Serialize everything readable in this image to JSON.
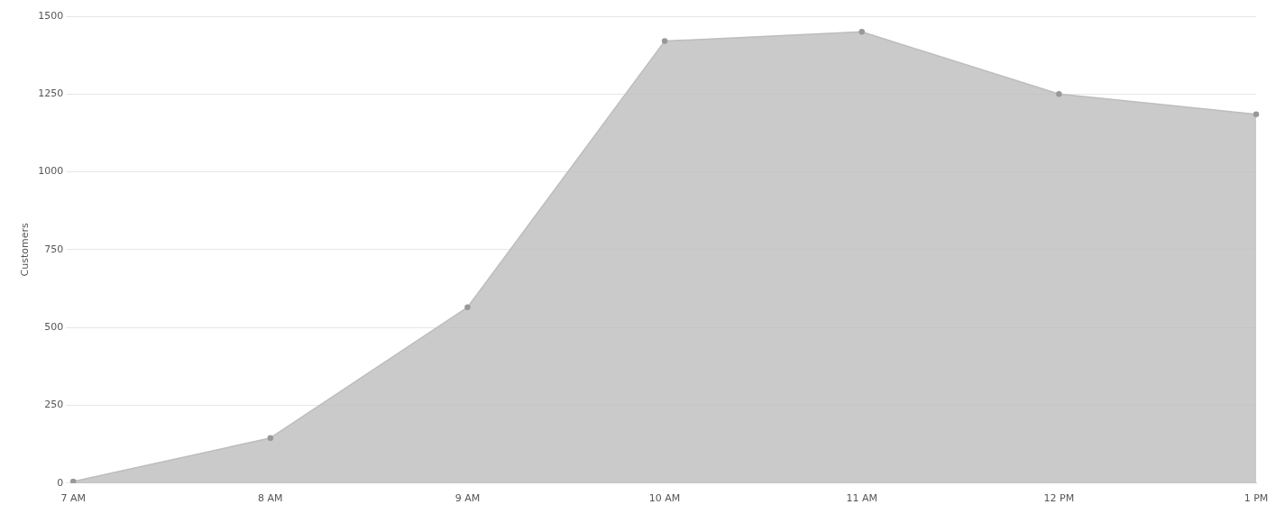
{
  "chart_data": {
    "type": "area",
    "ylabel": "Customers",
    "categories": [
      "7 AM",
      "8 AM",
      "9 AM",
      "10 AM",
      "11 AM",
      "12 PM",
      "1 PM"
    ],
    "series": [
      {
        "color": "#bdbdbd",
        "values": [
          5,
          145,
          565,
          1420,
          1450,
          1250,
          1185
        ]
      }
    ],
    "ylim": [
      0,
      1500
    ],
    "yticks": [
      0,
      250,
      500,
      750,
      1000,
      1250,
      1500
    ],
    "grid": "y",
    "legend": false,
    "marker": "circle"
  }
}
